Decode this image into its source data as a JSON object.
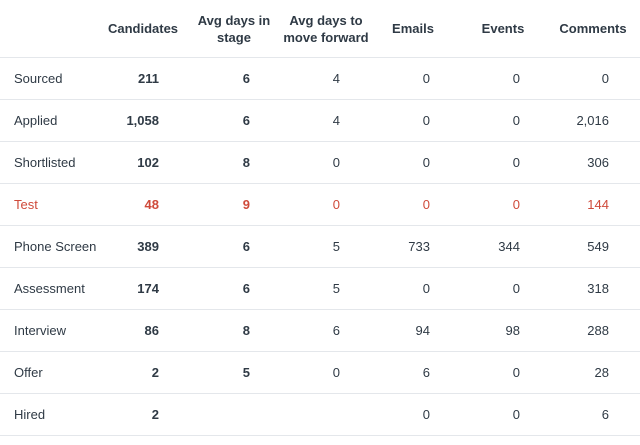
{
  "table": {
    "headers": {
      "stage": "",
      "candidates": "Candidates",
      "avg_days_line1": "Avg days in",
      "avg_days_line2": "stage",
      "move_line1": "Avg days to",
      "move_line2": "move forward",
      "emails": "Emails",
      "events": "Events",
      "comments": "Comments"
    },
    "highlight_color": "#cf4a3a",
    "rows": [
      {
        "stage": "Sourced",
        "candidates": "211",
        "avg_days": "6",
        "move_forward": "4",
        "emails": "0",
        "events": "0",
        "comments": "0",
        "highlighted": false
      },
      {
        "stage": "Applied",
        "candidates": "1,058",
        "avg_days": "6",
        "move_forward": "4",
        "emails": "0",
        "events": "0",
        "comments": "2,016",
        "highlighted": false
      },
      {
        "stage": "Shortlisted",
        "candidates": "102",
        "avg_days": "8",
        "move_forward": "0",
        "emails": "0",
        "events": "0",
        "comments": "306",
        "highlighted": false
      },
      {
        "stage": "Test",
        "candidates": "48",
        "avg_days": "9",
        "move_forward": "0",
        "emails": "0",
        "events": "0",
        "comments": "144",
        "highlighted": true
      },
      {
        "stage": "Phone Screen",
        "candidates": "389",
        "avg_days": "6",
        "move_forward": "5",
        "emails": "733",
        "events": "344",
        "comments": "549",
        "highlighted": false
      },
      {
        "stage": "Assessment",
        "candidates": "174",
        "avg_days": "6",
        "move_forward": "5",
        "emails": "0",
        "events": "0",
        "comments": "318",
        "highlighted": false
      },
      {
        "stage": "Interview",
        "candidates": "86",
        "avg_days": "8",
        "move_forward": "6",
        "emails": "94",
        "events": "98",
        "comments": "288",
        "highlighted": false
      },
      {
        "stage": "Offer",
        "candidates": "2",
        "avg_days": "5",
        "move_forward": "0",
        "emails": "6",
        "events": "0",
        "comments": "28",
        "highlighted": false
      },
      {
        "stage": "Hired",
        "candidates": "2",
        "avg_days": "",
        "move_forward": "",
        "emails": "0",
        "events": "0",
        "comments": "6",
        "highlighted": false
      }
    ]
  }
}
